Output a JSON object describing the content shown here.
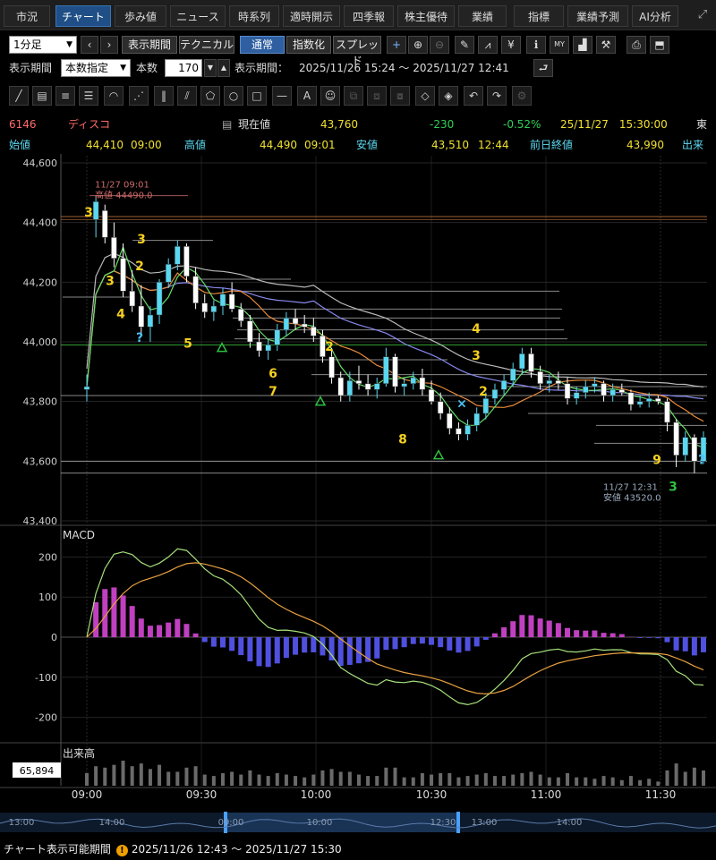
{
  "tabs": [
    "市況",
    "チャート",
    "歩み値",
    "ニュース",
    "時系列",
    "適時開示",
    "四季報",
    "株主優待",
    "業績",
    "指標",
    "業績予測",
    "AI分析"
  ],
  "active_tab": "チャート",
  "toolbar": {
    "interval": "1分足",
    "period_button": "表示期間",
    "technical_button": "テクニカル",
    "normal_button": "通常",
    "index_button": "指数化",
    "spread_button": "スプレッド"
  },
  "period_row": {
    "label": "表示期間",
    "mode": "本数指定",
    "count_label": "本数",
    "count_value": "170",
    "range_label": "表示期間：",
    "range_value": "2025/11/26 15:24 ～ 2025/11/27 12:41"
  },
  "quote": {
    "code": "6146",
    "name": "ディスコ",
    "price_label": "現在値",
    "price": "43,760",
    "change": "-230",
    "change_pct": "-0.52%",
    "datetime": "25/11/27　15:30:00",
    "market_abbr": "東",
    "open_label": "始値",
    "open": "44,410",
    "open_time": "09:00",
    "high_label": "高値",
    "high": "44,490",
    "high_time": "09:01",
    "low_label": "安値",
    "low": "43,510",
    "low_time": "12:44",
    "prev_close_label": "前日終値",
    "prev_close": "43,990",
    "volume_label": "出来"
  },
  "colors": {
    "up": "#5ad8f0",
    "down": "#ffffff",
    "accent_tab": "#1f4f86",
    "up_text": "#2fd05a",
    "code_text": "#ff6a6a",
    "yellow": "#f0e030",
    "ma_fast": "#66dd66",
    "ma_mid": "#e88a3a",
    "ma_slow": "#8888ee",
    "vwap": "#bbbbbb"
  },
  "footer": {
    "label": "チャート表示可能期間",
    "range": "2025/11/26 12:43 ～ 2025/11/27 15:30"
  },
  "chart_data": {
    "type": "candlestick",
    "price_axis_ticks": [
      "44,600",
      "44,400",
      "44,200",
      "44,000",
      "43,800",
      "43,600",
      "43,400"
    ],
    "ylim": [
      43400,
      44600
    ],
    "time_ticks": [
      "09:00",
      "09:30",
      "10:00",
      "10:30",
      "11:00",
      "11:30"
    ],
    "high_annotation": {
      "time": "11/27 09:01",
      "label": "高値",
      "value": "44490.0"
    },
    "low_annotation": {
      "time": "11/27 12:31",
      "label": "安値",
      "value": "43520.0"
    },
    "reference_line": 43990,
    "series": [
      {
        "name": "ohlc",
        "values": [
          [
            43840,
            43890,
            43800,
            43850
          ],
          [
            44410,
            44490,
            44350,
            44470
          ],
          [
            44440,
            44460,
            44330,
            44350
          ],
          [
            44350,
            44400,
            44250,
            44280
          ],
          [
            44280,
            44330,
            44150,
            44170
          ],
          [
            44170,
            44240,
            44100,
            44120
          ],
          [
            44120,
            44190,
            44030,
            44050
          ],
          [
            44050,
            44120,
            44000,
            44090
          ],
          [
            44090,
            44210,
            44060,
            44200
          ],
          [
            44200,
            44280,
            44180,
            44260
          ],
          [
            44260,
            44340,
            44240,
            44320
          ],
          [
            44320,
            44330,
            44200,
            44220
          ],
          [
            44220,
            44250,
            44110,
            44130
          ],
          [
            44130,
            44160,
            44080,
            44100
          ],
          [
            44100,
            44140,
            44070,
            44120
          ],
          [
            44120,
            44180,
            44090,
            44160
          ],
          [
            44160,
            44200,
            44100,
            44110
          ],
          [
            44110,
            44130,
            44050,
            44070
          ],
          [
            44070,
            44090,
            43980,
            44000
          ],
          [
            44000,
            44030,
            43950,
            43970
          ],
          [
            43970,
            44010,
            43940,
            43990
          ],
          [
            43990,
            44060,
            43970,
            44040
          ],
          [
            44040,
            44100,
            44020,
            44080
          ],
          [
            44080,
            44110,
            44040,
            44060
          ],
          [
            44060,
            44090,
            44030,
            44050
          ],
          [
            44050,
            44080,
            44000,
            44020
          ],
          [
            44020,
            44040,
            43930,
            43950
          ],
          [
            43950,
            43980,
            43860,
            43880
          ],
          [
            43880,
            43900,
            43800,
            43820
          ],
          [
            43820,
            43900,
            43800,
            43870
          ],
          [
            43870,
            43920,
            43840,
            43860
          ],
          [
            43860,
            43890,
            43820,
            43840
          ],
          [
            43840,
            43880,
            43810,
            43860
          ],
          [
            43860,
            43980,
            43850,
            43950
          ],
          [
            43950,
            43960,
            43830,
            43850
          ],
          [
            43850,
            43880,
            43820,
            43860
          ],
          [
            43860,
            43900,
            43840,
            43880
          ],
          [
            43880,
            43910,
            43820,
            43840
          ],
          [
            43840,
            43870,
            43790,
            43800
          ],
          [
            43800,
            43830,
            43740,
            43760
          ],
          [
            43760,
            43780,
            43690,
            43710
          ],
          [
            43710,
            43730,
            43670,
            43690
          ],
          [
            43690,
            43740,
            43670,
            43720
          ],
          [
            43720,
            43780,
            43700,
            43760
          ],
          [
            43760,
            43830,
            43740,
            43810
          ],
          [
            43810,
            43860,
            43790,
            43840
          ],
          [
            43840,
            43890,
            43820,
            43870
          ],
          [
            43870,
            43930,
            43850,
            43910
          ],
          [
            43910,
            43980,
            43890,
            43960
          ],
          [
            43960,
            43980,
            43880,
            43900
          ],
          [
            43900,
            43920,
            43840,
            43860
          ],
          [
            43860,
            43890,
            43830,
            43870
          ],
          [
            43870,
            43900,
            43840,
            43860
          ],
          [
            43860,
            43880,
            43790,
            43810
          ],
          [
            43810,
            43850,
            43790,
            43830
          ],
          [
            43830,
            43870,
            43810,
            43850
          ],
          [
            43850,
            43880,
            43830,
            43860
          ],
          [
            43860,
            43870,
            43800,
            43820
          ],
          [
            43820,
            43860,
            43800,
            43840
          ],
          [
            43840,
            43860,
            43820,
            43830
          ],
          [
            43830,
            43840,
            43770,
            43790
          ],
          [
            43790,
            43820,
            43780,
            43800
          ],
          [
            43800,
            43830,
            43780,
            43810
          ],
          [
            43810,
            43820,
            43790,
            43800
          ],
          [
            43800,
            43810,
            43700,
            43730
          ],
          [
            43730,
            43740,
            43580,
            43620
          ],
          [
            43620,
            43700,
            43600,
            43680
          ],
          [
            43680,
            43690,
            43560,
            43600
          ],
          [
            43600,
            43700,
            43590,
            43680
          ]
        ]
      }
    ],
    "macd_panel": {
      "label": "MACD",
      "ticks": [
        "200",
        "100",
        "0",
        "-100",
        "-200"
      ],
      "ylim": [
        -250,
        250
      ]
    },
    "volume_panel": {
      "label": "出来高",
      "current": "65,894"
    },
    "navigator_ticks": [
      "13:00",
      "14:00",
      "09:00",
      "10:00",
      "12:30",
      "13:00",
      "14:00"
    ],
    "markers": [
      {
        "text": "3",
        "color": "yellow"
      },
      {
        "text": "3",
        "color": "yellow"
      },
      {
        "text": "2",
        "color": "yellow"
      },
      {
        "text": "3",
        "color": "yellow"
      },
      {
        "text": "4",
        "color": "yellow"
      },
      {
        "text": "?",
        "color": "cyan"
      },
      {
        "text": "5",
        "color": "yellow"
      },
      {
        "text": "6",
        "color": "yellow"
      },
      {
        "text": "7",
        "color": "yellow"
      },
      {
        "text": "2",
        "color": "yellow"
      },
      {
        "text": "8",
        "color": "yellow"
      },
      {
        "text": "4",
        "color": "yellow"
      },
      {
        "text": "3",
        "color": "yellow"
      },
      {
        "text": "2",
        "color": "yellow"
      },
      {
        "text": "×",
        "color": "cyan"
      },
      {
        "text": "9",
        "color": "yellow"
      },
      {
        "text": "3",
        "color": "green"
      },
      {
        "text": "?",
        "color": "cyan"
      }
    ]
  }
}
